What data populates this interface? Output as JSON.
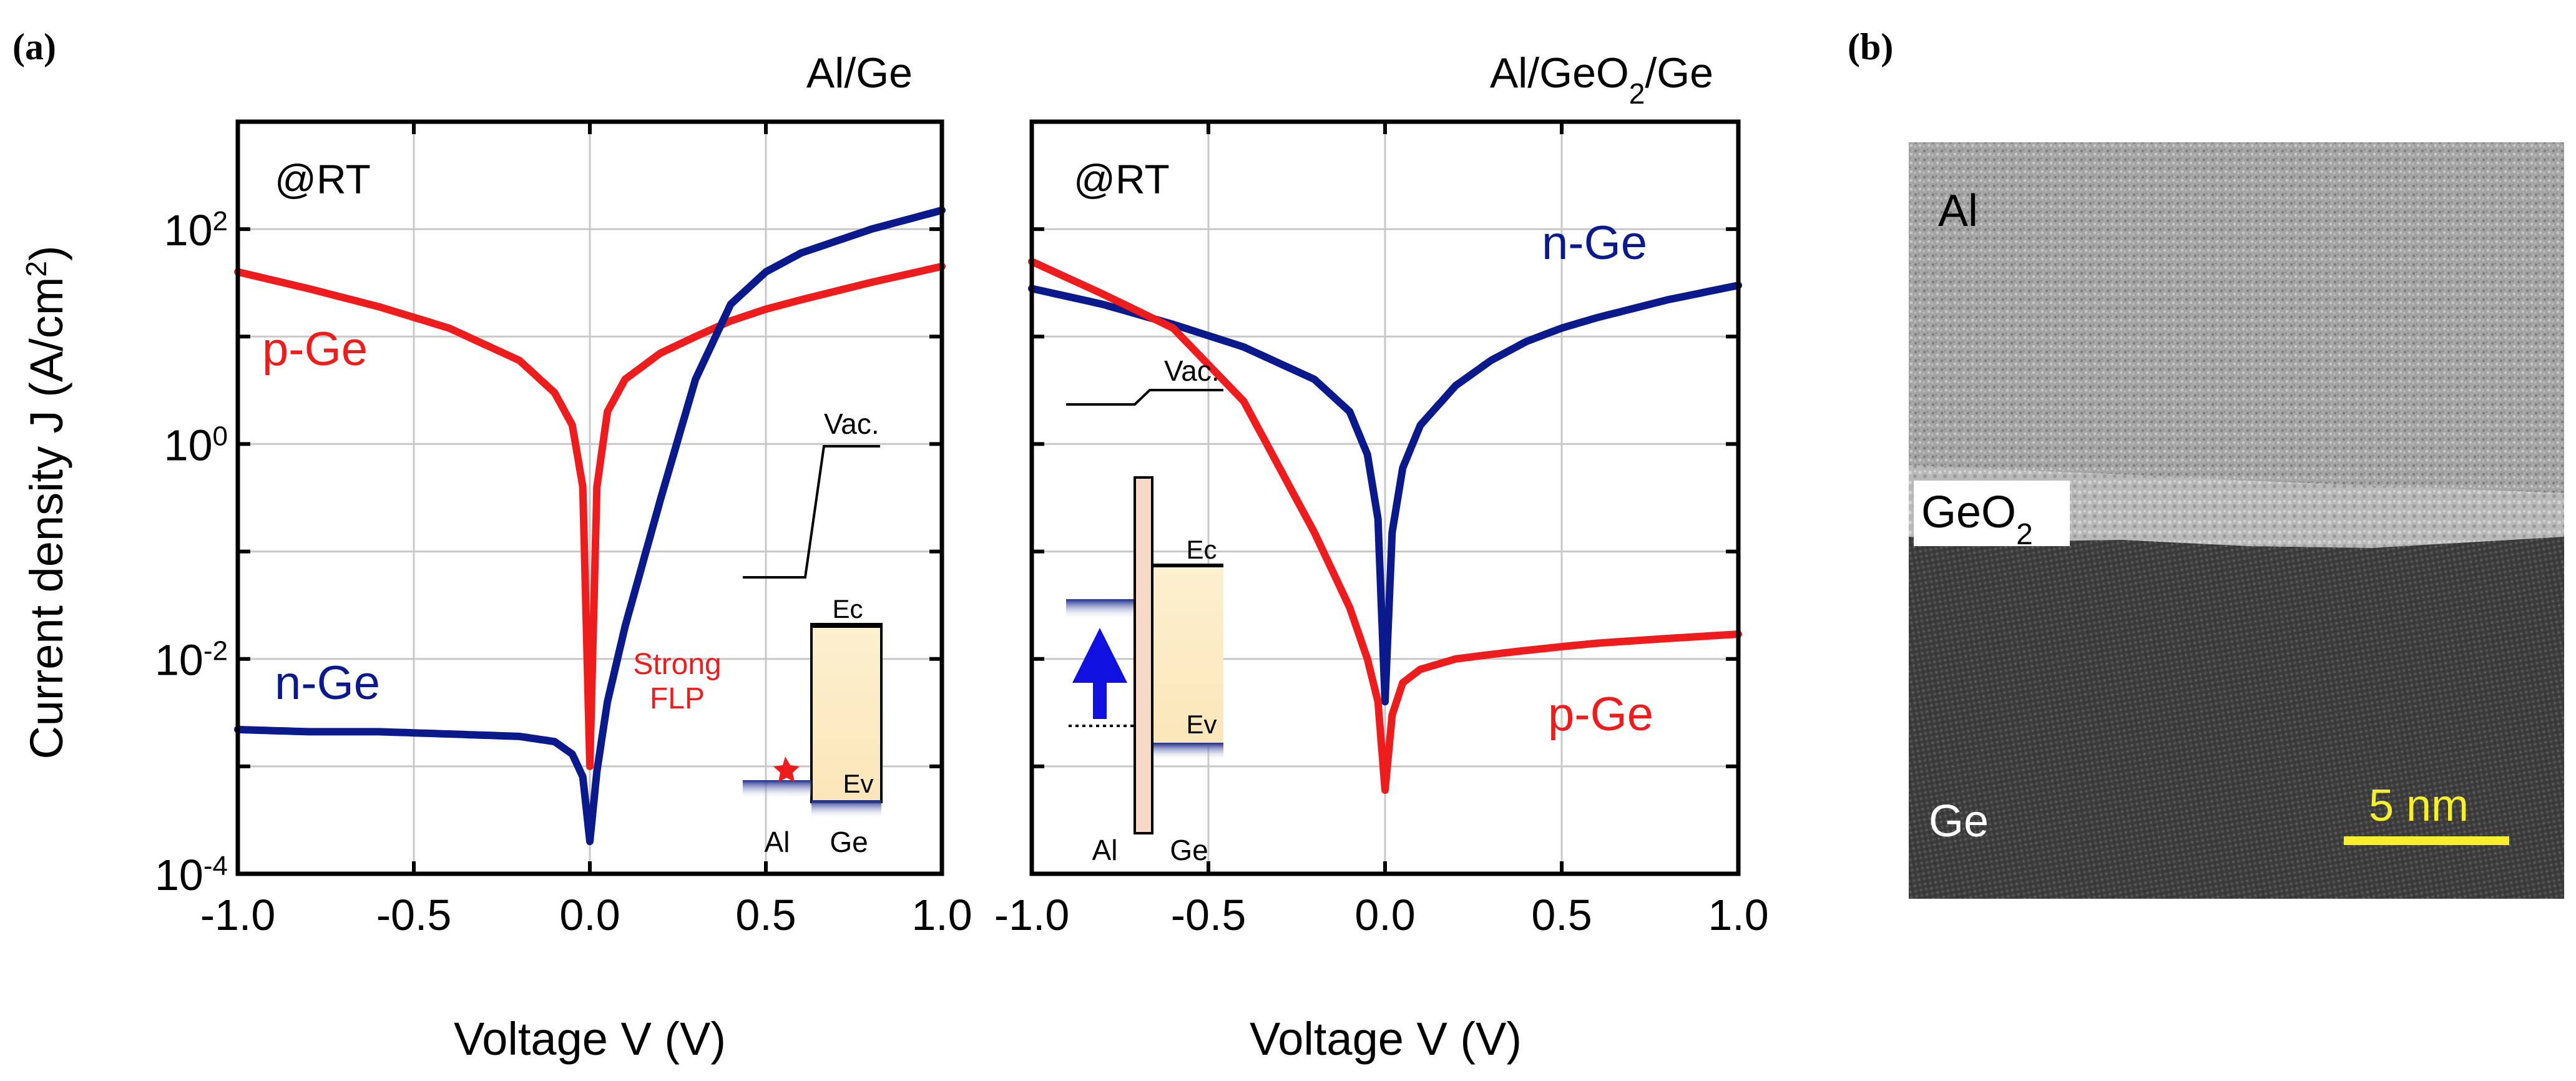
{
  "figure": {
    "panel_a_label": "(a)",
    "panel_b_label": "(b)"
  },
  "shared_axes": {
    "ylabel": "Current density J (A/cm",
    "ylabel_sup": "2",
    "ylabel_close": ")",
    "xlabel": "Voltage V (V)",
    "x_ticks": [
      "-1.0",
      "-0.5",
      "0.0",
      "0.5",
      "1.0"
    ],
    "y_ticks": [
      {
        "base": "10",
        "exp": "2"
      },
      {
        "base": "10",
        "exp": "0"
      },
      {
        "base": "10",
        "exp": "-2"
      },
      {
        "base": "10",
        "exp": "-4"
      }
    ]
  },
  "chart_data": [
    {
      "type": "line",
      "title": "Al/Ge",
      "annotation": "@RT",
      "xlabel": "Voltage V (V)",
      "ylabel": "Current density J (A/cm2)",
      "xlim": [
        -1.0,
        1.0
      ],
      "ylim_log10": [
        -4,
        3
      ],
      "yscale": "log",
      "grid": true,
      "series": [
        {
          "name": "p-Ge",
          "color": "#ee1c1c",
          "x": [
            -1.0,
            -0.8,
            -0.6,
            -0.4,
            -0.2,
            -0.1,
            -0.05,
            -0.02,
            0.0,
            0.02,
            0.05,
            0.1,
            0.2,
            0.3,
            0.4,
            0.5,
            0.6,
            0.8,
            1.0
          ],
          "y": [
            40,
            28,
            19,
            12,
            6,
            3,
            1.5,
            0.4,
            0.001,
            0.4,
            2,
            4,
            7,
            10,
            14,
            18,
            22,
            32,
            45
          ]
        },
        {
          "name": "n-Ge",
          "color": "#0a1a8c",
          "x": [
            -1.0,
            -0.8,
            -0.6,
            -0.4,
            -0.2,
            -0.1,
            -0.05,
            -0.02,
            0.0,
            0.02,
            0.05,
            0.1,
            0.2,
            0.3,
            0.4,
            0.5,
            0.6,
            0.8,
            1.0
          ],
          "y": [
            0.0022,
            0.0021,
            0.0021,
            0.002,
            0.0019,
            0.0017,
            0.0013,
            0.0008,
            0.0002,
            0.0009,
            0.004,
            0.02,
            0.3,
            4,
            20,
            40,
            60,
            100,
            150
          ]
        }
      ],
      "inset": {
        "vac": "Vac.",
        "ec": "Ec",
        "ev": "Ev",
        "metal": "Al",
        "semi": "Ge",
        "note_line1": "Strong",
        "note_line2": "FLP"
      }
    },
    {
      "type": "line",
      "title": "Al/GeO",
      "title_sub": "2",
      "title_tail": "/Ge",
      "annotation": "@RT",
      "xlabel": "Voltage V (V)",
      "ylabel": "Current density J (A/cm2)",
      "xlim": [
        -1.0,
        1.0
      ],
      "ylim_log10": [
        -4,
        3
      ],
      "yscale": "log",
      "grid": true,
      "series": [
        {
          "name": "n-Ge",
          "color": "#0a1a8c",
          "x": [
            -1.0,
            -0.8,
            -0.6,
            -0.4,
            -0.2,
            -0.1,
            -0.05,
            -0.02,
            0.0,
            0.02,
            0.05,
            0.1,
            0.2,
            0.3,
            0.4,
            0.5,
            0.6,
            0.8,
            1.0
          ],
          "y": [
            28,
            20,
            13,
            8,
            4,
            2,
            0.8,
            0.2,
            0.004,
            0.15,
            0.6,
            1.5,
            3.5,
            6,
            9,
            12,
            15,
            22,
            30
          ]
        },
        {
          "name": "p-Ge",
          "color": "#ee1c1c",
          "x": [
            -1.0,
            -0.8,
            -0.6,
            -0.4,
            -0.2,
            -0.1,
            -0.05,
            -0.02,
            0.0,
            0.02,
            0.05,
            0.1,
            0.2,
            0.3,
            0.4,
            0.5,
            0.6,
            0.8,
            1.0
          ],
          "y": [
            50,
            25,
            12,
            2.5,
            0.15,
            0.03,
            0.01,
            0.004,
            0.0006,
            0.003,
            0.006,
            0.008,
            0.01,
            0.011,
            0.012,
            0.013,
            0.014,
            0.0155,
            0.017
          ]
        }
      ],
      "inset": {
        "vac": "Vac.",
        "ec": "Ec",
        "ev": "Ev",
        "metal": "Al",
        "semi": "Ge"
      }
    }
  ],
  "tem": {
    "label_top": "Al",
    "label_mid": "GeO",
    "label_mid_sub": "2",
    "label_bottom": "Ge",
    "scale_bar": "5 nm"
  }
}
